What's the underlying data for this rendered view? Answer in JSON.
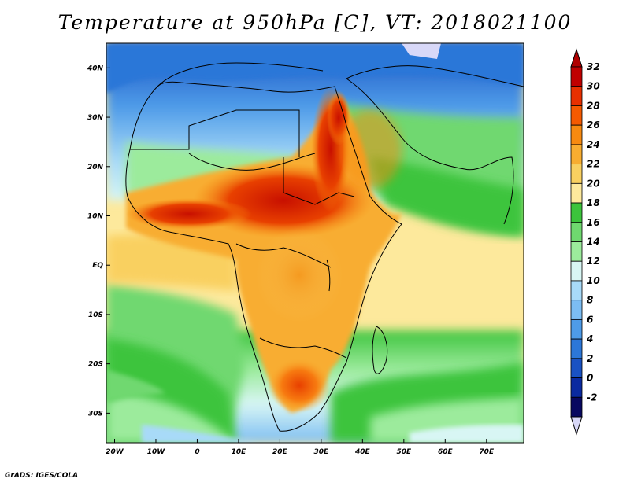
{
  "title": "Temperature at 950hPa [C], VT: 2018021100",
  "footer": "GrADS: IGES/COLA",
  "map": {
    "region": "Africa and western Indian Ocean",
    "variable": "Temperature at 950 hPa",
    "units": "C",
    "valid_time": "2018021100",
    "lat_range": [
      -36,
      45
    ],
    "lon_range": [
      -22,
      79
    ],
    "lat_ticks": [
      "40N",
      "30N",
      "20N",
      "10N",
      "EQ",
      "10S",
      "20S",
      "30S"
    ],
    "lat_values": [
      40,
      30,
      20,
      10,
      0,
      -10,
      -20,
      -30
    ],
    "lon_ticks": [
      "20W",
      "10W",
      "0",
      "10E",
      "20E",
      "30E",
      "40E",
      "50E",
      "60E",
      "70E"
    ],
    "lon_values": [
      -20,
      -10,
      0,
      10,
      20,
      30,
      40,
      50,
      60,
      70
    ]
  },
  "colorbar": {
    "labels": [
      "32",
      "30",
      "28",
      "26",
      "24",
      "22",
      "20",
      "18",
      "16",
      "14",
      "12",
      "10",
      "8",
      "6",
      "4",
      "2",
      "0",
      "-2"
    ],
    "colors": [
      "#c00000",
      "#e83000",
      "#f55a00",
      "#f78a10",
      "#f8ad30",
      "#f9d060",
      "#fde99c",
      "#3cc43c",
      "#6fd86f",
      "#9ceb9c",
      "#d8f6f4",
      "#a8daf8",
      "#7cbdf3",
      "#4e9be8",
      "#2c77d8",
      "#1a52c3",
      "#0a2aa0",
      "#080860"
    ],
    "top_triangle_color": "#b00000",
    "bottom_triangle_color": "#d8d8f8"
  }
}
